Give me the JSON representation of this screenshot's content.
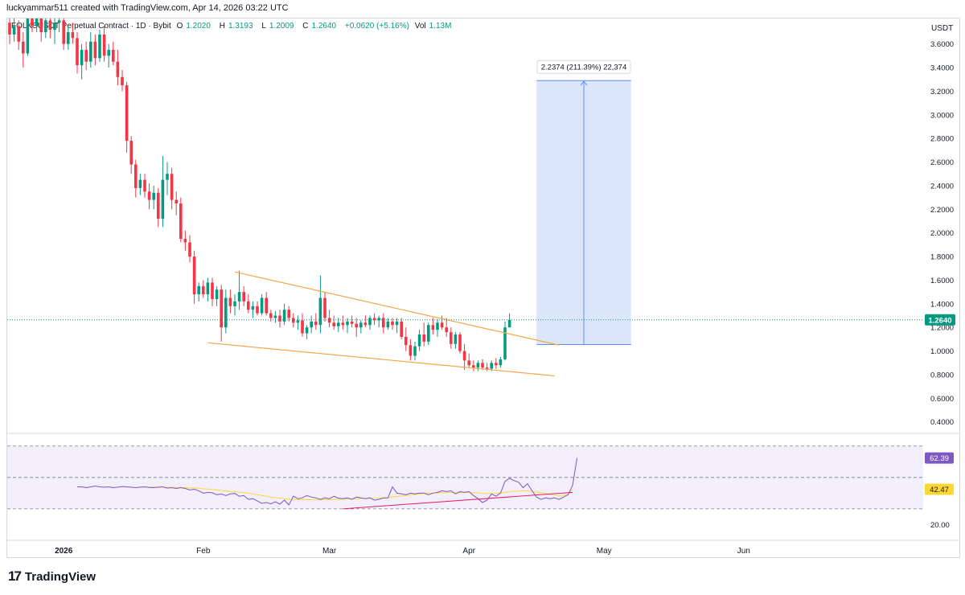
{
  "header": {
    "credit": "luckyammar511 created with TradingView.com, Apr 14, 2026 03:22 UTC"
  },
  "legend": {
    "symbol": "FOLKSUSDT Perpetual Contract · 1D · Bybit",
    "o_label": "O",
    "o_value": "1.2020",
    "h_label": "H",
    "h_value": "1.3193",
    "l_label": "L",
    "l_value": "1.2009",
    "c_label": "C",
    "c_value": "1.2640",
    "change": "+0.0620 (+5.16%)",
    "vol_label": "Vol",
    "vol_value": "1.13M"
  },
  "currency": "USDT",
  "brand": {
    "logo": "17",
    "name": "TradingView"
  },
  "colors": {
    "up": "#089981",
    "down": "#f23645",
    "trendline": "#f7a548",
    "projection_fill": "#dbe6fb",
    "projection_line": "#5b8ef0",
    "rsi_line": "#7e57c2",
    "rsi_ma": "#fdd835",
    "rsi_band": "#f3eefc",
    "rsi_trend": "#e91e63",
    "axis_text": "#131722"
  },
  "chart_data": [
    {
      "type": "candlestick",
      "title": "FOLKSUSDT Perpetual Contract · 1D · Bybit",
      "xlabel": "",
      "ylabel": "",
      "x_ticks": [
        "2026",
        "Feb",
        "Mar",
        "Apr",
        "May",
        "Jun"
      ],
      "y_ticks": [
        "0.4000",
        "0.6000",
        "0.8000",
        "1.0000",
        "1.2000",
        "1.4000",
        "1.6000",
        "1.8000",
        "2.0000",
        "2.2000",
        "2.4000",
        "2.6000",
        "2.8000",
        "3.0000",
        "3.2000",
        "3.4000",
        "3.6000"
      ],
      "ylim": [
        0.33,
        3.7
      ],
      "last_price": 1.264,
      "last_price_label": "1.2640",
      "start_date": "2025-12-20",
      "candles": [
        {
          "o": 3.78,
          "h": 3.85,
          "l": 3.6,
          "c": 3.68
        },
        {
          "o": 3.68,
          "h": 3.82,
          "l": 3.62,
          "c": 3.75
        },
        {
          "o": 3.75,
          "h": 3.8,
          "l": 3.55,
          "c": 3.62
        },
        {
          "o": 3.62,
          "h": 3.7,
          "l": 3.4,
          "c": 3.52
        },
        {
          "o": 3.52,
          "h": 3.9,
          "l": 3.5,
          "c": 3.85
        },
        {
          "o": 3.85,
          "h": 3.9,
          "l": 3.7,
          "c": 3.75
        },
        {
          "o": 3.75,
          "h": 3.88,
          "l": 3.7,
          "c": 3.82
        },
        {
          "o": 3.82,
          "h": 3.88,
          "l": 3.62,
          "c": 3.7
        },
        {
          "o": 3.7,
          "h": 3.85,
          "l": 3.65,
          "c": 3.8
        },
        {
          "o": 3.8,
          "h": 3.85,
          "l": 3.65,
          "c": 3.72
        },
        {
          "o": 3.72,
          "h": 3.82,
          "l": 3.6,
          "c": 3.78
        },
        {
          "o": 3.78,
          "h": 3.85,
          "l": 3.7,
          "c": 3.8
        },
        {
          "o": 3.8,
          "h": 3.82,
          "l": 3.55,
          "c": 3.6
        },
        {
          "o": 3.6,
          "h": 3.75,
          "l": 3.55,
          "c": 3.7
        },
        {
          "o": 3.7,
          "h": 3.78,
          "l": 3.6,
          "c": 3.65
        },
        {
          "o": 3.65,
          "h": 3.7,
          "l": 3.35,
          "c": 3.42
        },
        {
          "o": 3.42,
          "h": 3.6,
          "l": 3.3,
          "c": 3.55
        },
        {
          "o": 3.55,
          "h": 3.62,
          "l": 3.38,
          "c": 3.45
        },
        {
          "o": 3.45,
          "h": 3.7,
          "l": 3.4,
          "c": 3.62
        },
        {
          "o": 3.62,
          "h": 3.68,
          "l": 3.42,
          "c": 3.48
        },
        {
          "o": 3.48,
          "h": 3.72,
          "l": 3.45,
          "c": 3.68
        },
        {
          "o": 3.68,
          "h": 3.75,
          "l": 3.45,
          "c": 3.5
        },
        {
          "o": 3.5,
          "h": 3.6,
          "l": 3.4,
          "c": 3.55
        },
        {
          "o": 3.55,
          "h": 3.62,
          "l": 3.42,
          "c": 3.45
        },
        {
          "o": 3.45,
          "h": 3.55,
          "l": 3.25,
          "c": 3.32
        },
        {
          "o": 3.32,
          "h": 3.38,
          "l": 3.2,
          "c": 3.25
        },
        {
          "o": 3.25,
          "h": 3.28,
          "l": 2.68,
          "c": 2.78
        },
        {
          "o": 2.78,
          "h": 2.82,
          "l": 2.5,
          "c": 2.58
        },
        {
          "o": 2.58,
          "h": 2.62,
          "l": 2.3,
          "c": 2.38
        },
        {
          "o": 2.38,
          "h": 2.5,
          "l": 2.32,
          "c": 2.45
        },
        {
          "o": 2.45,
          "h": 2.5,
          "l": 2.3,
          "c": 2.35
        },
        {
          "o": 2.35,
          "h": 2.42,
          "l": 2.2,
          "c": 2.28
        },
        {
          "o": 2.28,
          "h": 2.4,
          "l": 2.2,
          "c": 2.34
        },
        {
          "o": 2.34,
          "h": 2.38,
          "l": 2.05,
          "c": 2.12
        },
        {
          "o": 2.12,
          "h": 2.65,
          "l": 2.05,
          "c": 2.45
        },
        {
          "o": 2.45,
          "h": 2.6,
          "l": 2.32,
          "c": 2.5
        },
        {
          "o": 2.5,
          "h": 2.55,
          "l": 2.2,
          "c": 2.28
        },
        {
          "o": 2.28,
          "h": 2.35,
          "l": 2.15,
          "c": 2.25
        },
        {
          "o": 2.25,
          "h": 2.3,
          "l": 1.92,
          "c": 1.95
        },
        {
          "o": 1.95,
          "h": 2.02,
          "l": 1.85,
          "c": 1.92
        },
        {
          "o": 1.92,
          "h": 1.98,
          "l": 1.75,
          "c": 1.8
        },
        {
          "o": 1.8,
          "h": 1.85,
          "l": 1.4,
          "c": 1.48
        },
        {
          "o": 1.48,
          "h": 1.58,
          "l": 1.42,
          "c": 1.55
        },
        {
          "o": 1.55,
          "h": 1.6,
          "l": 1.45,
          "c": 1.48
        },
        {
          "o": 1.48,
          "h": 1.62,
          "l": 1.42,
          "c": 1.58
        },
        {
          "o": 1.58,
          "h": 1.62,
          "l": 1.38,
          "c": 1.44
        },
        {
          "o": 1.44,
          "h": 1.55,
          "l": 1.38,
          "c": 1.52
        },
        {
          "o": 1.52,
          "h": 1.56,
          "l": 1.08,
          "c": 1.2
        },
        {
          "o": 1.2,
          "h": 1.52,
          "l": 1.15,
          "c": 1.45
        },
        {
          "o": 1.45,
          "h": 1.52,
          "l": 1.32,
          "c": 1.38
        },
        {
          "o": 1.38,
          "h": 1.48,
          "l": 1.3,
          "c": 1.42
        },
        {
          "o": 1.42,
          "h": 1.68,
          "l": 1.35,
          "c": 1.5
        },
        {
          "o": 1.5,
          "h": 1.55,
          "l": 1.38,
          "c": 1.42
        },
        {
          "o": 1.42,
          "h": 1.48,
          "l": 1.32,
          "c": 1.35
        },
        {
          "o": 1.35,
          "h": 1.42,
          "l": 1.28,
          "c": 1.38
        },
        {
          "o": 1.38,
          "h": 1.42,
          "l": 1.3,
          "c": 1.32
        },
        {
          "o": 1.32,
          "h": 1.48,
          "l": 1.3,
          "c": 1.45
        },
        {
          "o": 1.45,
          "h": 1.5,
          "l": 1.3,
          "c": 1.32
        },
        {
          "o": 1.32,
          "h": 1.35,
          "l": 1.25,
          "c": 1.28
        },
        {
          "o": 1.28,
          "h": 1.34,
          "l": 1.24,
          "c": 1.3
        },
        {
          "o": 1.3,
          "h": 1.35,
          "l": 1.2,
          "c": 1.25
        },
        {
          "o": 1.25,
          "h": 1.4,
          "l": 1.22,
          "c": 1.35
        },
        {
          "o": 1.35,
          "h": 1.38,
          "l": 1.25,
          "c": 1.28
        },
        {
          "o": 1.28,
          "h": 1.32,
          "l": 1.2,
          "c": 1.24
        },
        {
          "o": 1.24,
          "h": 1.3,
          "l": 1.18,
          "c": 1.26
        },
        {
          "o": 1.26,
          "h": 1.32,
          "l": 1.12,
          "c": 1.15
        },
        {
          "o": 1.15,
          "h": 1.22,
          "l": 1.1,
          "c": 1.2
        },
        {
          "o": 1.2,
          "h": 1.3,
          "l": 1.15,
          "c": 1.25
        },
        {
          "o": 1.25,
          "h": 1.32,
          "l": 1.18,
          "c": 1.22
        },
        {
          "o": 1.22,
          "h": 1.64,
          "l": 1.15,
          "c": 1.45
        },
        {
          "o": 1.45,
          "h": 1.5,
          "l": 1.25,
          "c": 1.28
        },
        {
          "o": 1.28,
          "h": 1.35,
          "l": 1.2,
          "c": 1.24
        },
        {
          "o": 1.24,
          "h": 1.3,
          "l": 1.18,
          "c": 1.21
        },
        {
          "o": 1.21,
          "h": 1.28,
          "l": 1.16,
          "c": 1.24
        },
        {
          "o": 1.24,
          "h": 1.3,
          "l": 1.18,
          "c": 1.22
        },
        {
          "o": 1.22,
          "h": 1.28,
          "l": 1.15,
          "c": 1.25
        },
        {
          "o": 1.25,
          "h": 1.3,
          "l": 1.2,
          "c": 1.23
        },
        {
          "o": 1.23,
          "h": 1.28,
          "l": 1.12,
          "c": 1.2
        },
        {
          "o": 1.2,
          "h": 1.26,
          "l": 1.15,
          "c": 1.24
        },
        {
          "o": 1.24,
          "h": 1.3,
          "l": 1.2,
          "c": 1.22
        },
        {
          "o": 1.22,
          "h": 1.3,
          "l": 1.18,
          "c": 1.28
        },
        {
          "o": 1.28,
          "h": 1.32,
          "l": 1.22,
          "c": 1.26
        },
        {
          "o": 1.26,
          "h": 1.3,
          "l": 1.2,
          "c": 1.28
        },
        {
          "o": 1.28,
          "h": 1.32,
          "l": 1.15,
          "c": 1.2
        },
        {
          "o": 1.2,
          "h": 1.28,
          "l": 1.18,
          "c": 1.25
        },
        {
          "o": 1.25,
          "h": 1.28,
          "l": 1.18,
          "c": 1.22
        },
        {
          "o": 1.22,
          "h": 1.28,
          "l": 1.15,
          "c": 1.25
        },
        {
          "o": 1.25,
          "h": 1.28,
          "l": 1.1,
          "c": 1.12
        },
        {
          "o": 1.12,
          "h": 1.2,
          "l": 1.0,
          "c": 1.05
        },
        {
          "o": 1.05,
          "h": 1.1,
          "l": 0.92,
          "c": 0.96
        },
        {
          "o": 0.96,
          "h": 1.08,
          "l": 0.92,
          "c": 1.04
        },
        {
          "o": 1.04,
          "h": 1.18,
          "l": 1.0,
          "c": 1.14
        },
        {
          "o": 1.14,
          "h": 1.24,
          "l": 1.04,
          "c": 1.08
        },
        {
          "o": 1.08,
          "h": 1.24,
          "l": 1.05,
          "c": 1.22
        },
        {
          "o": 1.22,
          "h": 1.28,
          "l": 1.14,
          "c": 1.18
        },
        {
          "o": 1.18,
          "h": 1.27,
          "l": 1.12,
          "c": 1.24
        },
        {
          "o": 1.24,
          "h": 1.3,
          "l": 1.18,
          "c": 1.2
        },
        {
          "o": 1.2,
          "h": 1.28,
          "l": 1.12,
          "c": 1.16
        },
        {
          "o": 1.16,
          "h": 1.2,
          "l": 1.02,
          "c": 1.06
        },
        {
          "o": 1.06,
          "h": 1.16,
          "l": 1.02,
          "c": 1.14
        },
        {
          "o": 1.14,
          "h": 1.16,
          "l": 0.98,
          "c": 1.0
        },
        {
          "o": 1.0,
          "h": 1.06,
          "l": 0.84,
          "c": 0.92
        },
        {
          "o": 0.92,
          "h": 0.98,
          "l": 0.86,
          "c": 0.88
        },
        {
          "o": 0.88,
          "h": 0.92,
          "l": 0.83,
          "c": 0.86
        },
        {
          "o": 0.86,
          "h": 0.92,
          "l": 0.83,
          "c": 0.9
        },
        {
          "o": 0.9,
          "h": 0.93,
          "l": 0.84,
          "c": 0.86
        },
        {
          "o": 0.86,
          "h": 0.9,
          "l": 0.83,
          "c": 0.85
        },
        {
          "o": 0.85,
          "h": 0.92,
          "l": 0.83,
          "c": 0.9
        },
        {
          "o": 0.9,
          "h": 0.94,
          "l": 0.85,
          "c": 0.88
        },
        {
          "o": 0.88,
          "h": 0.95,
          "l": 0.86,
          "c": 0.93
        },
        {
          "o": 0.93,
          "h": 1.25,
          "l": 0.92,
          "c": 1.2
        },
        {
          "o": 1.2,
          "h": 1.3193,
          "l": 1.2009,
          "c": 1.264
        }
      ],
      "falling_wedge": {
        "upper": [
          [
            "2026-02-08",
            1.67
          ],
          [
            "2026-04-21",
            1.05
          ]
        ],
        "lower": [
          [
            "2026-02-02",
            1.07
          ],
          [
            "2026-04-20",
            0.79
          ]
        ]
      },
      "projection": {
        "from_date": "2026-04-16",
        "to_date": "2026-05-07",
        "from_price": 1.055,
        "to_price": 3.29,
        "label": "2.2374 (211.39%) 22,374"
      }
    },
    {
      "type": "line",
      "title": "",
      "y_ticks": [
        "20.00"
      ],
      "ylim": [
        12,
        75
      ],
      "levels": [
        70,
        50,
        30
      ],
      "current_labels": {
        "rsi": "62.39",
        "ma": "42.47"
      },
      "series": [
        {
          "values": [
            44,
            44,
            43.5,
            44,
            44.5,
            44,
            43.8,
            44,
            43.5,
            43.8,
            44.2,
            44,
            43.8,
            43.5,
            43.8,
            44,
            43.6,
            43.5,
            43.8,
            44,
            43.2,
            43.5,
            43,
            43.5,
            43,
            42,
            42.5,
            41.5,
            40,
            40.5,
            40.2,
            39,
            39.5,
            38.5,
            39.5,
            39.8,
            38,
            38.5,
            36,
            36.5,
            35,
            33.5,
            34,
            33.2,
            34.5,
            33,
            35.5,
            32.5,
            38,
            36.5,
            37,
            38.5,
            37.5,
            37,
            36,
            37,
            36.5,
            38,
            36.8,
            36.5,
            37,
            36,
            37.5,
            37,
            36.5,
            37,
            35.5,
            36,
            37,
            37,
            44,
            40,
            39.5,
            39,
            40,
            39.5,
            40,
            40,
            39,
            40,
            40.5,
            41.5,
            41,
            41.5,
            39.5,
            41,
            40.5,
            41,
            38.5,
            36.5,
            34,
            35.5,
            39.5,
            38,
            40,
            47.5,
            49.5,
            48,
            47,
            43.5,
            46,
            41.5,
            37.5,
            36,
            37,
            36.5,
            37,
            36,
            37.5,
            39,
            45,
            62.39
          ]
        },
        {
          "values": [
            null,
            null,
            null,
            null,
            null,
            null,
            null,
            null,
            null,
            null,
            null,
            null,
            null,
            null,
            43.9,
            43.9,
            43.8,
            43.8,
            43.8,
            43.8,
            43.7,
            43.7,
            43.6,
            43.6,
            43.5,
            43.4,
            43.3,
            43.1,
            42.8,
            42.6,
            42.3,
            42,
            41.7,
            41.4,
            41.1,
            40.9,
            40.6,
            40.3,
            39.9,
            39.5,
            39,
            38.5,
            38,
            37.5,
            37.2,
            36.8,
            36.5,
            36.1,
            36,
            35.8,
            35.8,
            35.8,
            35.8,
            35.8,
            35.7,
            35.8,
            35.8,
            36,
            36.1,
            36.2,
            36.3,
            36.3,
            36.5,
            36.6,
            36.7,
            36.8,
            36.8,
            36.9,
            37,
            37.1,
            37.6,
            37.9,
            38.2,
            38.5,
            38.9,
            39.2,
            39.5,
            39.8,
            40,
            40.1,
            40.2,
            40.3,
            40.4,
            40.5,
            40.4,
            40.4,
            40.4,
            40.4,
            40.3,
            40.1,
            39.8,
            39.7,
            39.8,
            39.8,
            40.1,
            40.5,
            40.9,
            41.2,
            41.4,
            41.6,
            41.4,
            41.1,
            40.7,
            40.3,
            39.8,
            39.3,
            38.8,
            38.5,
            38.5,
            39.2,
            42.47
          ]
        }
      ],
      "trendline": [
        [
          "2026-03-04",
          30
        ],
        [
          "2026-04-24",
          40.5
        ]
      ]
    }
  ],
  "axes": {
    "y_label_left": 1157,
    "unused": ""
  }
}
